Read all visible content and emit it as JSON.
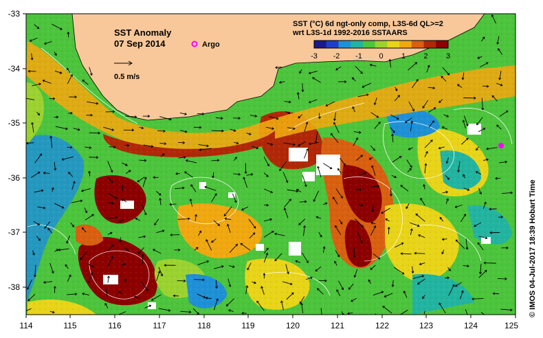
{
  "title": {
    "line1": "SST Anomaly",
    "line2": "07 Sep 2014"
  },
  "legend": {
    "argo_label": "Argo",
    "argo_color": "#ff00ff",
    "vector_label": "0.5 m/s"
  },
  "product": {
    "line1": "SST (°C) 6d ngt-only comp, L3S-6d QL>=2",
    "line2": "wrt L3S-1d 1992-2016 SSTAARS"
  },
  "colorbar": {
    "ticks": [
      "-3",
      "-2",
      "-1",
      "0",
      "1",
      "2",
      "3"
    ],
    "colors": [
      "#1a1a8c",
      "#1f3fc8",
      "#1e90d6",
      "#22b4a0",
      "#4cc43c",
      "#9cd230",
      "#e8d418",
      "#f0a810",
      "#d86010",
      "#b02808",
      "#8c0000"
    ]
  },
  "credit": "© IMOS 04-Jul-2017 18:39 Hobart Time",
  "map": {
    "land_color": "#f8c89a",
    "x_ticks": [
      "114",
      "115",
      "116",
      "117",
      "118",
      "119",
      "120",
      "121",
      "122",
      "123",
      "124",
      "125"
    ],
    "y_ticks": [
      "-33",
      "-34",
      "-35",
      "-36",
      "-37",
      "-38"
    ],
    "lon_range": [
      114,
      125
    ],
    "lat_range": [
      -38.5,
      -33
    ]
  }
}
